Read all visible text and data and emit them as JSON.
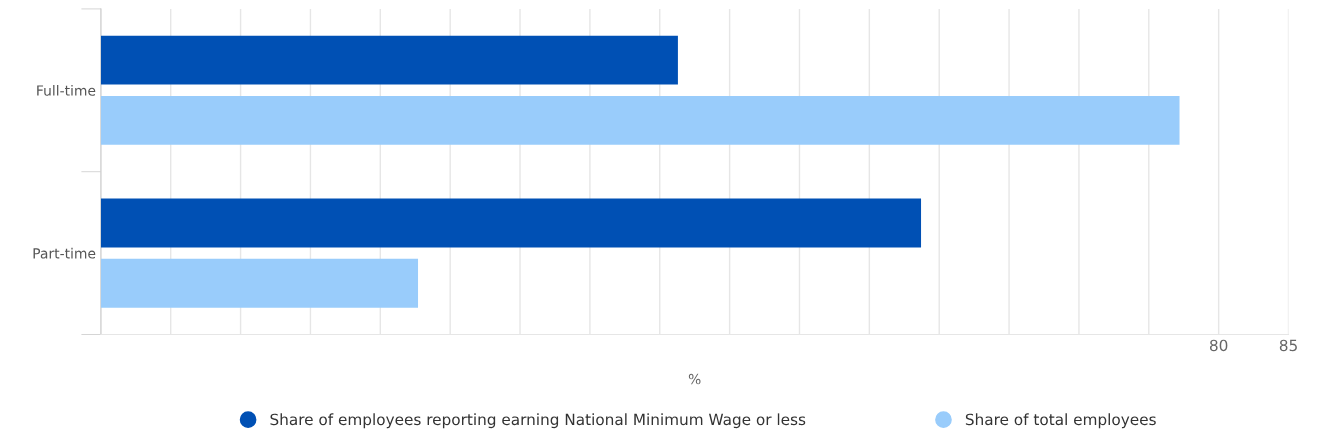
{
  "chart_data": {
    "type": "bar",
    "orientation": "horizontal",
    "categories": [
      "Full-time",
      "Part-time"
    ],
    "series": [
      {
        "name": "Share of employees reporting earning National Minimum Wage or less",
        "color": "#0050b4",
        "values": [
          41.3,
          58.7
        ]
      },
      {
        "name": "Share of total employees",
        "color": "#99ccfb",
        "values": [
          77.2,
          22.7
        ]
      }
    ],
    "xlabel": "%",
    "xlim": [
      0,
      85
    ],
    "xticks": [
      {
        "value": 0,
        "label": null
      },
      {
        "value": 5,
        "label": null
      },
      {
        "value": 10,
        "label": null
      },
      {
        "value": 15,
        "label": null
      },
      {
        "value": 20,
        "label": null
      },
      {
        "value": 25,
        "label": null
      },
      {
        "value": 30,
        "label": null
      },
      {
        "value": 35,
        "label": null
      },
      {
        "value": 40,
        "label": null
      },
      {
        "value": 45,
        "label": null
      },
      {
        "value": 50,
        "label": null
      },
      {
        "value": 55,
        "label": null
      },
      {
        "value": 60,
        "label": null
      },
      {
        "value": 65,
        "label": null
      },
      {
        "value": 70,
        "label": null
      },
      {
        "value": 75,
        "label": null
      },
      80,
      85
    ],
    "grid": "x",
    "legend": "bottom"
  }
}
